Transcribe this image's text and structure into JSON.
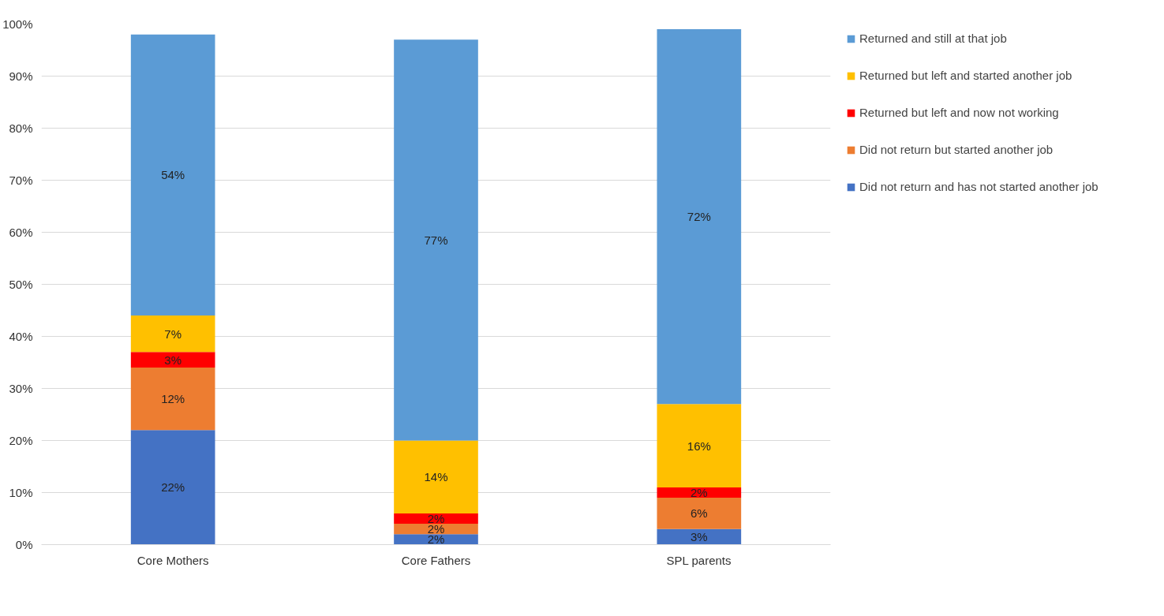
{
  "chart_data": {
    "type": "bar",
    "stacked": true,
    "categories": [
      "Core Mothers",
      "Core Fathers",
      "SPL parents"
    ],
    "series": [
      {
        "name": "Did not return and has not started another job",
        "color": "#4472c4",
        "values": [
          22,
          2,
          3
        ],
        "value_labels": [
          "22%",
          "2%",
          "3%"
        ]
      },
      {
        "name": "Did not return but started another job",
        "color": "#ed7d31",
        "values": [
          12,
          2,
          6
        ],
        "value_labels": [
          "12%",
          "2%",
          "6%"
        ]
      },
      {
        "name": "Returned but left and now not working",
        "color": "#ff0000",
        "values": [
          3,
          2,
          2
        ],
        "value_labels": [
          "3%",
          "2%",
          "2%"
        ]
      },
      {
        "name": "Returned but left and started another job",
        "color": "#ffc000",
        "values": [
          7,
          14,
          16
        ],
        "value_labels": [
          "7%",
          "14%",
          "16%"
        ]
      },
      {
        "name": "Returned and still at that job",
        "color": "#5b9bd5",
        "values": [
          54,
          77,
          72
        ],
        "value_labels": [
          "54%",
          "77%",
          "72%"
        ]
      }
    ],
    "ylim": [
      0,
      100
    ],
    "yticks": [
      {
        "value": 0,
        "label": "0%"
      },
      {
        "value": 10,
        "label": "10%"
      },
      {
        "value": 20,
        "label": "20%"
      },
      {
        "value": 30,
        "label": "30%"
      },
      {
        "value": 40,
        "label": "40%"
      },
      {
        "value": 50,
        "label": "50%"
      },
      {
        "value": 60,
        "label": "60%"
      },
      {
        "value": 70,
        "label": "70%"
      },
      {
        "value": 80,
        "label": "80%"
      },
      {
        "value": 90,
        "label": "90%"
      },
      {
        "value": 100,
        "label": "100%"
      }
    ],
    "grid": "y",
    "legend": "right"
  }
}
